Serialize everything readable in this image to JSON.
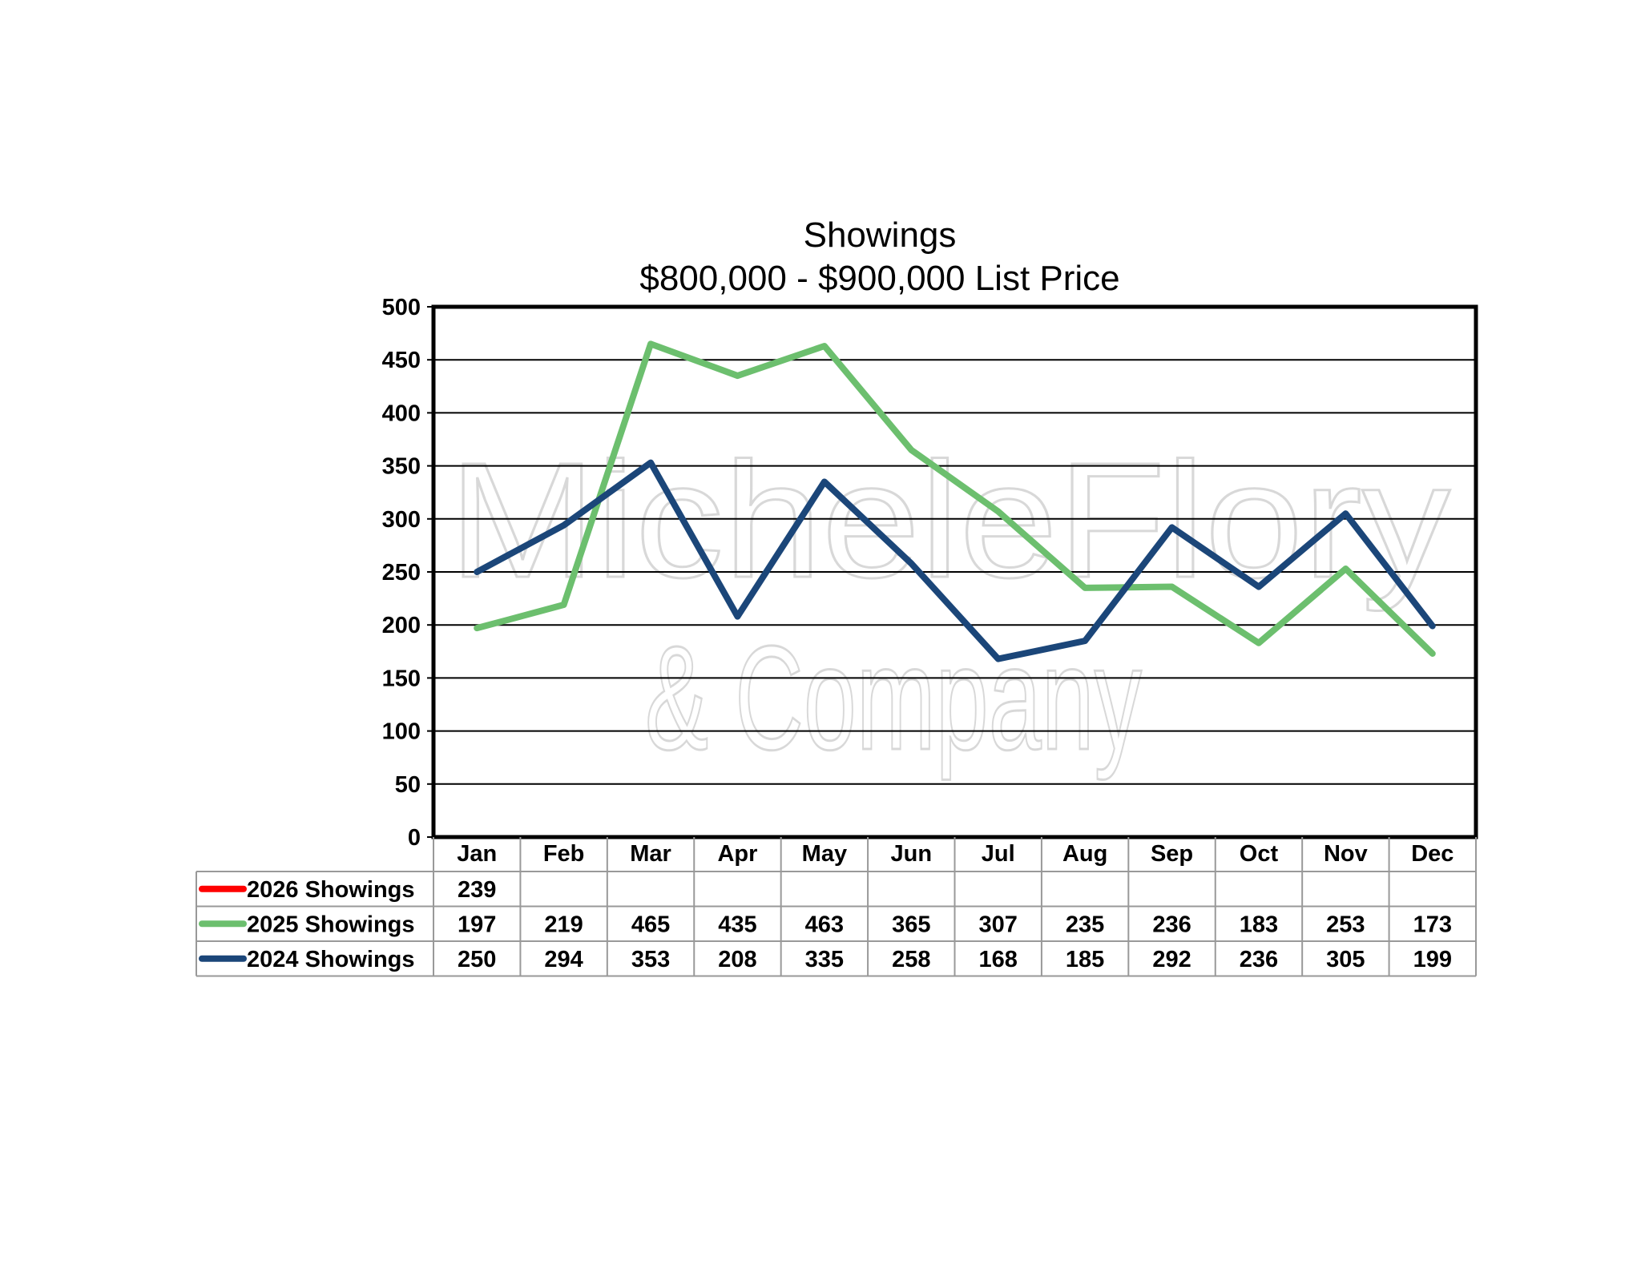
{
  "chart_data": {
    "type": "line",
    "title": "Showings",
    "subtitle": "$800,000 - $900,000 List Price",
    "xlabel": "",
    "ylabel": "",
    "ylim": [
      0,
      500
    ],
    "yticks": [
      0,
      50,
      100,
      150,
      200,
      250,
      300,
      350,
      400,
      450,
      500
    ],
    "grid": true,
    "legend": "data table below chart",
    "categories": [
      "Jan",
      "Feb",
      "Mar",
      "Apr",
      "May",
      "Jun",
      "Jul",
      "Aug",
      "Sep",
      "Oct",
      "Nov",
      "Dec"
    ],
    "series": [
      {
        "name": "2026 Showings",
        "color": "#ff0000",
        "values": [
          239,
          null,
          null,
          null,
          null,
          null,
          null,
          null,
          null,
          null,
          null,
          null
        ],
        "plotted": false
      },
      {
        "name": "2025 Showings",
        "color": "#6cbf6e",
        "values": [
          197,
          219,
          465,
          435,
          463,
          365,
          307,
          235,
          236,
          183,
          253,
          173
        ],
        "plotted": true
      },
      {
        "name": "2024 Showings",
        "color": "#1b4679",
        "values": [
          250,
          294,
          353,
          208,
          335,
          258,
          168,
          185,
          292,
          236,
          305,
          199
        ],
        "plotted": true
      }
    ]
  },
  "watermark": {
    "line1": "MicheleFlory",
    "line2": "& Company"
  }
}
